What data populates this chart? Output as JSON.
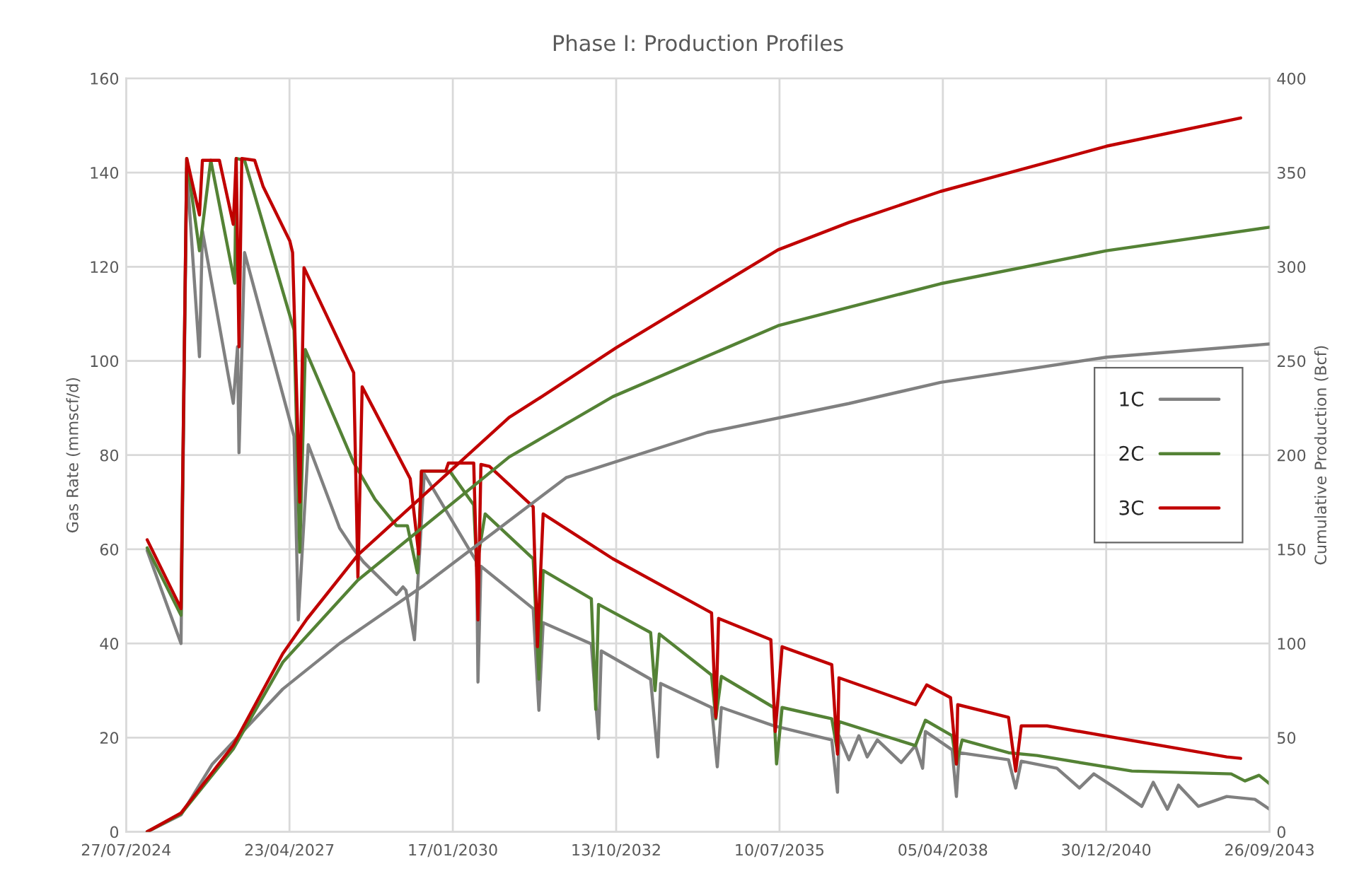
{
  "chart_data": {
    "type": "line",
    "title": "Phase I: Production Profiles",
    "ylabel": "Gas Rate (mmscf/d)",
    "y2label": "Cumulative Production (Bcf)",
    "xlim": [
      "2024-07-27",
      "2043-09-26"
    ],
    "xticks": [
      {
        "value": "2024-07-27",
        "label": "27/07/2024"
      },
      {
        "value": "2027-04-23",
        "label": "23/04/2027"
      },
      {
        "value": "2030-01-17",
        "label": "17/01/2030"
      },
      {
        "value": "2032-10-13",
        "label": "13/10/2032"
      },
      {
        "value": "2035-07-10",
        "label": "10/07/2035"
      },
      {
        "value": "2038-04-05",
        "label": "05/04/2038"
      },
      {
        "value": "2040-12-30",
        "label": "30/12/2040"
      },
      {
        "value": "2043-09-26",
        "label": "26/09/2043"
      }
    ],
    "ylim": [
      0,
      160
    ],
    "yticks": [
      0,
      20,
      40,
      60,
      80,
      100,
      120,
      140,
      160
    ],
    "y2lim": [
      0,
      400
    ],
    "y2ticks": [
      0,
      50,
      100,
      150,
      200,
      250,
      300,
      350,
      400
    ],
    "grid": true,
    "legend": "right",
    "marker": "none",
    "line_style": "solid",
    "series": [
      {
        "name": "1C",
        "color": "#808080",
        "x": [
          "2024-12-03",
          "2025-06-28",
          "2025-08-02",
          "2025-10-19",
          "2025-11-06",
          "2026-05-14",
          "2026-06-09",
          "2026-06-18",
          "2026-07-22",
          "2027-05-21",
          "2027-06-16",
          "2027-08-16",
          "2028-02-24",
          "2028-05-20",
          "2028-07-19",
          "2029-02-06",
          "2029-03-18",
          "2029-04-05",
          "2029-05-27",
          "2029-07-26",
          "2030-06-12",
          "2030-06-20",
          "2030-07-08",
          "2031-05-24",
          "2031-06-28",
          "2031-07-24",
          "2032-05-14",
          "2032-06-27",
          "2032-07-14",
          "2033-05-12",
          "2033-06-25",
          "2033-07-12",
          "2034-05-20",
          "2034-06-24",
          "2034-07-19",
          "2035-06-05",
          "2036-05-25",
          "2036-06-29",
          "2036-07-08",
          "2036-09-07",
          "2036-11-07",
          "2036-12-28",
          "2037-02-28",
          "2037-07-24",
          "2037-10-19",
          "2037-12-02",
          "2037-12-19",
          "2038-06-01",
          "2038-06-27",
          "2038-07-14",
          "2039-05-12",
          "2039-06-25",
          "2039-07-29",
          "2040-03-03",
          "2040-07-19",
          "2040-10-15",
          "2041-03-10",
          "2041-08-05",
          "2041-10-14",
          "2042-01-09",
          "2042-03-17",
          "2042-07-17",
          "2043-01-07",
          "2043-06-28",
          "2043-09-26"
        ],
        "values": [
          59.7,
          40,
          141,
          100.9,
          127.6,
          91,
          103,
          80.5,
          123,
          84,
          45,
          82.2,
          64.5,
          60,
          57.3,
          50.4,
          52,
          51.3,
          40.8,
          76,
          57.3,
          31.8,
          56.4,
          47.4,
          25.8,
          44.4,
          39.9,
          19.8,
          38.4,
          32.4,
          15.9,
          31.5,
          26.4,
          13.8,
          26.4,
          22.5,
          19.5,
          8.4,
          20.4,
          15.3,
          20.4,
          15.9,
          19.5,
          14.7,
          18.3,
          13.5,
          21.3,
          17.4,
          7.5,
          16.8,
          15.3,
          9.3,
          15,
          13.5,
          9.3,
          12.3,
          9,
          5.4,
          10.5,
          4.8,
          9.9,
          5.4,
          7.5,
          6.9,
          4.8
        ]
      },
      {
        "name": "2C",
        "color": "#548235",
        "x": [
          "2024-12-03",
          "2025-06-28",
          "2025-08-02",
          "2025-10-19",
          "2025-12-27",
          "2026-05-23",
          "2026-06-01",
          "2026-07-22",
          "2027-05-21",
          "2027-06-25",
          "2027-07-29",
          "2028-05-20",
          "2028-09-28",
          "2029-02-06",
          "2029-04-14",
          "2029-06-14",
          "2029-07-09",
          "2029-12-29",
          "2030-05-25",
          "2030-06-12",
          "2030-08-03",
          "2031-05-24",
          "2031-06-28",
          "2031-07-24",
          "2032-05-14",
          "2032-06-10",
          "2032-06-27",
          "2033-05-12",
          "2033-06-08",
          "2033-07-04",
          "2034-05-20",
          "2034-06-15",
          "2034-07-19",
          "2035-06-05",
          "2035-06-22",
          "2035-07-26",
          "2036-05-25",
          "2036-06-29",
          "2036-07-08",
          "2037-10-19",
          "2037-12-19",
          "2038-06-01",
          "2038-06-27",
          "2038-08-01",
          "2039-05-12",
          "2039-11-03",
          "2041-06-05",
          "2043-02-03",
          "2043-04-28",
          "2043-07-24",
          "2043-09-26"
        ],
        "values": [
          60.3,
          46,
          143,
          123.4,
          142.6,
          116.5,
          143,
          142.6,
          106.6,
          59.4,
          102.4,
          78.4,
          70.6,
          65,
          65,
          55,
          76.6,
          76.6,
          69.4,
          56.4,
          67.5,
          58,
          32.4,
          55.5,
          49.5,
          26,
          48.3,
          42.3,
          30,
          42,
          33.3,
          24,
          33,
          26.4,
          14.4,
          26.4,
          24,
          17,
          23.4,
          18.3,
          23.7,
          20.4,
          14.4,
          19.5,
          16.8,
          16.2,
          12.9,
          12.3,
          10.8,
          12,
          10.2
        ]
      },
      {
        "name": "3C",
        "color": "#c00000",
        "x": [
          "2024-12-03",
          "2025-06-28",
          "2025-08-02",
          "2025-10-19",
          "2025-11-06",
          "2026-02-18",
          "2026-05-14",
          "2026-06-01",
          "2026-06-18",
          "2026-07-05",
          "2026-09-22",
          "2026-11-13",
          "2027-04-25",
          "2027-05-12",
          "2027-06-25",
          "2027-07-21",
          "2028-05-20",
          "2028-06-15",
          "2028-07-11",
          "2029-05-01",
          "2029-06-22",
          "2029-07-09",
          "2029-12-04",
          "2029-12-21",
          "2030-05-25",
          "2030-06-20",
          "2030-07-08",
          "2030-08-29",
          "2031-05-24",
          "2031-06-19",
          "2031-07-24",
          "2032-09-22",
          "2034-05-20",
          "2034-06-15",
          "2034-07-02",
          "2035-05-18",
          "2035-06-14",
          "2035-07-26",
          "2036-05-25",
          "2036-06-29",
          "2036-07-08",
          "2037-10-19",
          "2037-12-27",
          "2038-05-22",
          "2038-06-27",
          "2038-07-05",
          "2039-05-12",
          "2039-06-25",
          "2039-07-29",
          "2040-01-03",
          "2043-01-07",
          "2043-04-02"
        ],
        "values": [
          62,
          47.4,
          143,
          131,
          142.6,
          142.6,
          129,
          143,
          103,
          143,
          142.6,
          137,
          125.5,
          123,
          70,
          119.8,
          97.5,
          54,
          94.5,
          75,
          59,
          76.6,
          76.6,
          78.3,
          78.3,
          45,
          78,
          77.6,
          69,
          39.3,
          67.5,
          58,
          46.5,
          24.3,
          45.3,
          40.8,
          21.3,
          39.3,
          35.5,
          16.5,
          32.7,
          27,
          31.2,
          28.5,
          14.4,
          27,
          24.3,
          12.9,
          22.5,
          22.5,
          15.9,
          15.6
        ]
      },
      {
        "axis": "y2",
        "color": "#808080",
        "x": [
          "2024-12-03",
          "2025-06-28",
          "2026-01-06",
          "2027-03-13",
          "2028-02-24",
          "2029-07-26",
          "2031-12-11",
          "2034-04-24",
          "2036-09-07",
          "2038-03-22",
          "2041-01-01",
          "2043-09-26"
        ],
        "values": [
          0,
          9,
          36,
          75.8,
          100,
          131,
          188,
          212,
          227.4,
          238.6,
          252,
          259
        ]
      },
      {
        "axis": "y2",
        "color": "#548235",
        "x": [
          "2024-12-03",
          "2025-06-28",
          "2026-05-14",
          "2027-03-13",
          "2028-06-15",
          "2030-12-28",
          "2032-09-22",
          "2035-07-01",
          "2036-09-07",
          "2038-03-22",
          "2041-01-01",
          "2043-09-26"
        ],
        "values": [
          0,
          9.5,
          44,
          90,
          133.6,
          199,
          231,
          268.7,
          278.5,
          291,
          308.5,
          321
        ]
      },
      {
        "axis": "y2",
        "color": "#c00000",
        "x": [
          "2024-12-03",
          "2025-06-28",
          "2026-05-14",
          "2027-03-13",
          "2027-08-08",
          "2028-06-15",
          "2030-12-28",
          "2031-07-15",
          "2032-10-13",
          "2035-07-01",
          "2036-09-07",
          "2038-03-22",
          "2041-01-01",
          "2043-04-02"
        ],
        "values": [
          0,
          10,
          46,
          94.6,
          113,
          147,
          220,
          231,
          257,
          309,
          323.5,
          340,
          364,
          379
        ]
      }
    ]
  }
}
